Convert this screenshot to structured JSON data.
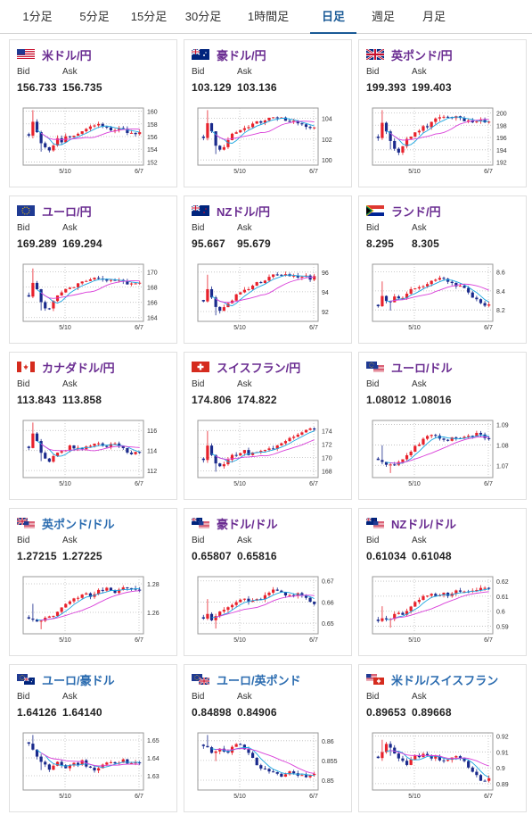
{
  "tabs": [
    {
      "label": "1分足",
      "active": false
    },
    {
      "label": "5分足",
      "active": false
    },
    {
      "label": "15分足",
      "active": false
    },
    {
      "label": "30分足",
      "active": false
    },
    {
      "label": "1時間足",
      "active": false
    },
    {
      "label": "日足",
      "active": true
    },
    {
      "label": "週足",
      "active": false
    },
    {
      "label": "月足",
      "active": false
    }
  ],
  "labels": {
    "bid": "Bid",
    "ask": "Ask"
  },
  "colors": {
    "up": "#e8212b",
    "down": "#1a2a8c",
    "ma_short": "#1aa5e0",
    "ma_long": "#d93ed9",
    "purple": "#6a2c91",
    "blue": "#2b6cb0"
  },
  "cards": [
    {
      "pair": "米ドル/円",
      "flag": "us",
      "color": "purple",
      "bid": "156.733",
      "ask": "156.735",
      "chart": {
        "yticks": [
          "160",
          "158",
          "156",
          "154",
          "152"
        ],
        "ylim": [
          151.5,
          160.5
        ],
        "xticks": [
          "5/10",
          "6/7"
        ]
      }
    },
    {
      "pair": "豪ドル/円",
      "flag": "au",
      "color": "purple",
      "bid": "103.129",
      "ask": "103.136",
      "chart": {
        "yticks": [
          "104",
          "102",
          "100"
        ],
        "ylim": [
          99.5,
          105.0
        ],
        "xticks": [
          "5/10",
          "6/7"
        ]
      }
    },
    {
      "pair": "英ポンド/円",
      "flag": "gb",
      "color": "purple",
      "bid": "199.393",
      "ask": "199.403",
      "chart": {
        "yticks": [
          "200",
          "198",
          "196",
          "194",
          "192"
        ],
        "ylim": [
          191.5,
          200.8
        ],
        "xticks": [
          "5/10",
          "6/7"
        ]
      }
    },
    {
      "pair": "ユーロ/円",
      "flag": "eu",
      "color": "purple",
      "bid": "169.289",
      "ask": "169.294",
      "chart": {
        "yticks": [
          "170",
          "168",
          "166",
          "164"
        ],
        "ylim": [
          163.5,
          171.0
        ],
        "xticks": [
          "5/10",
          "6/7"
        ]
      }
    },
    {
      "pair": "NZドル/円",
      "flag": "nz",
      "color": "purple",
      "bid": "95.667",
      "ask": "95.679",
      "chart": {
        "yticks": [
          "96",
          "94",
          "92"
        ],
        "ylim": [
          91.0,
          96.8
        ],
        "xticks": [
          "5/10",
          "6/7"
        ]
      }
    },
    {
      "pair": "ランド/円",
      "flag": "za",
      "color": "purple",
      "bid": "8.295",
      "ask": "8.305",
      "chart": {
        "yticks": [
          "8.6",
          "8.4",
          "8.2"
        ],
        "ylim": [
          8.08,
          8.68
        ],
        "xticks": [
          "5/10",
          "6/7"
        ]
      }
    },
    {
      "pair": "カナダドル/円",
      "flag": "ca",
      "color": "purple",
      "bid": "113.843",
      "ask": "113.858",
      "chart": {
        "yticks": [
          "116",
          "114",
          "112"
        ],
        "ylim": [
          111.3,
          117.0
        ],
        "xticks": [
          "5/10",
          "6/7"
        ]
      }
    },
    {
      "pair": "スイスフラン/円",
      "flag": "ch",
      "color": "purple",
      "bid": "174.806",
      "ask": "174.822",
      "chart": {
        "yticks": [
          "174",
          "172",
          "170",
          "168"
        ],
        "ylim": [
          167.0,
          175.5
        ],
        "xticks": [
          "5/10",
          "6/7"
        ]
      }
    },
    {
      "pair": "ユーロ/ドル",
      "flag": "euus",
      "color": "purple",
      "bid": "1.08012",
      "ask": "1.08016",
      "chart": {
        "yticks": [
          "1.09",
          "1.08",
          "1.07"
        ],
        "ylim": [
          1.064,
          1.092
        ],
        "xticks": [
          "5/10",
          "6/7"
        ]
      }
    },
    {
      "pair": "英ポンド/ドル",
      "flag": "gbus",
      "color": "blue",
      "bid": "1.27215",
      "ask": "1.27225",
      "chart": {
        "yticks": [
          "1.28",
          "1.26"
        ],
        "ylim": [
          1.245,
          1.285
        ],
        "xticks": [
          "5/10",
          "6/7"
        ]
      }
    },
    {
      "pair": "豪ドル/ドル",
      "flag": "auus",
      "color": "purple",
      "bid": "0.65807",
      "ask": "0.65816",
      "chart": {
        "yticks": [
          "0.67",
          "0.66",
          "0.65"
        ],
        "ylim": [
          0.645,
          0.672
        ],
        "xticks": [
          "5/10",
          "6/7"
        ]
      }
    },
    {
      "pair": "NZドル/ドル",
      "flag": "nzus",
      "color": "purple",
      "bid": "0.61034",
      "ask": "0.61048",
      "chart": {
        "yticks": [
          "0.62",
          "0.61",
          "0.6",
          "0.59"
        ],
        "ylim": [
          0.585,
          0.623
        ],
        "xticks": [
          "5/10",
          "6/7"
        ]
      }
    },
    {
      "pair": "ユーロ/豪ドル",
      "flag": "euau",
      "color": "blue",
      "bid": "1.64126",
      "ask": "1.64140",
      "chart": {
        "yticks": [
          "1.65",
          "1.64",
          "1.63"
        ],
        "ylim": [
          1.622,
          1.654
        ],
        "xticks": [
          "5/10",
          "6/7"
        ]
      }
    },
    {
      "pair": "ユーロ/英ポンド",
      "flag": "eugb",
      "color": "blue",
      "bid": "0.84898",
      "ask": "0.84906",
      "chart": {
        "yticks": [
          "0.86",
          "0.855",
          "0.85"
        ],
        "ylim": [
          0.8475,
          0.862
        ],
        "xticks": [
          "5/10",
          "6/7"
        ]
      }
    },
    {
      "pair": "米ドル/スイスフラン",
      "flag": "usch",
      "color": "blue",
      "bid": "0.89653",
      "ask": "0.89668",
      "chart": {
        "yticks": [
          "0.92",
          "0.91",
          "0.9",
          "0.89"
        ],
        "ylim": [
          0.886,
          0.922
        ],
        "xticks": [
          "5/10",
          "6/7"
        ]
      }
    }
  ]
}
